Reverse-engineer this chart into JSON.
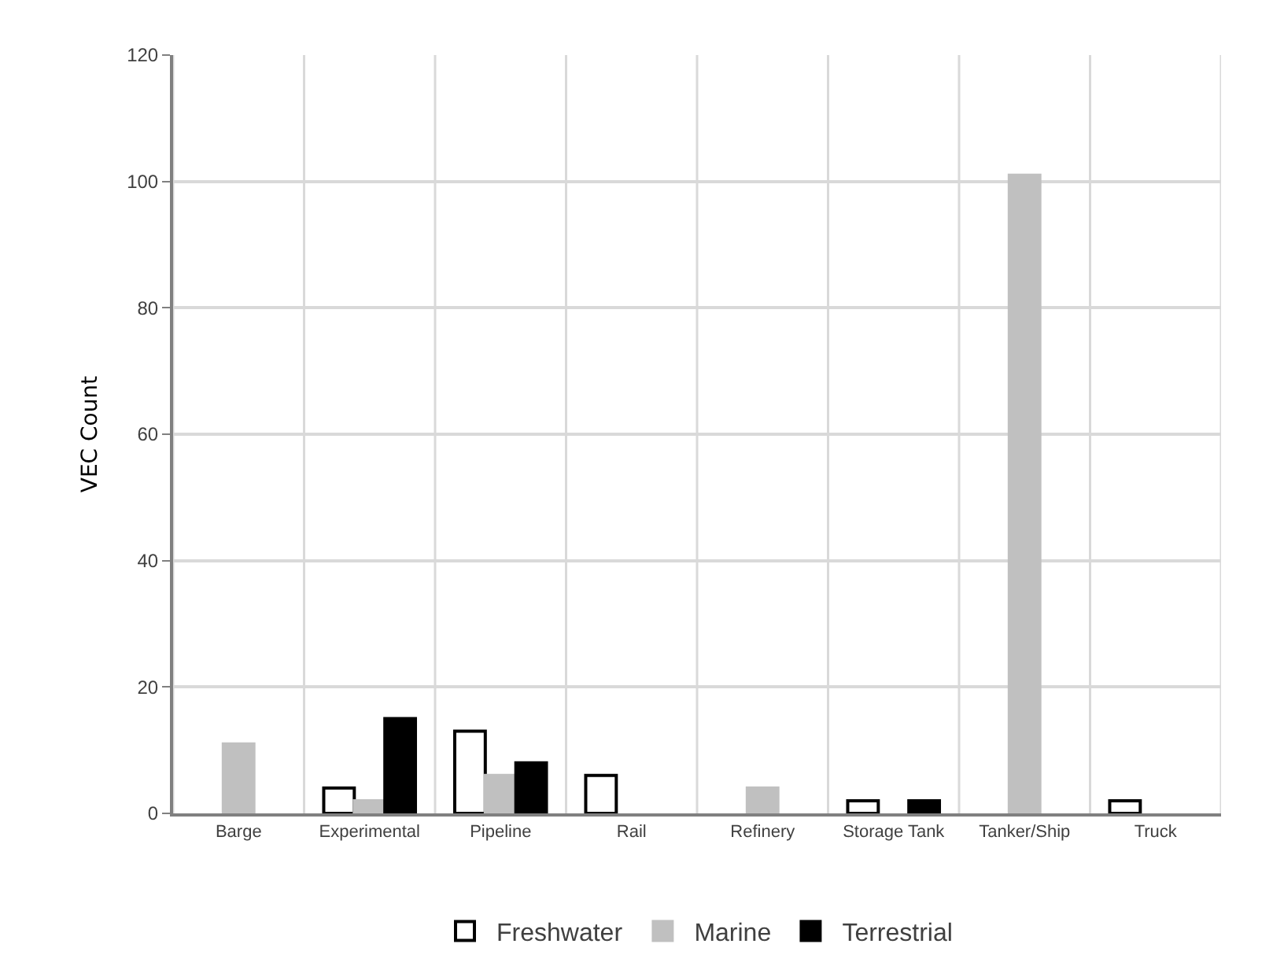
{
  "chart_data": {
    "type": "bar",
    "ylabel": "VEC Count",
    "categories": [
      "Barge",
      "Experimental",
      "Pipeline",
      "Rail",
      "Refinery",
      "Storage Tank",
      "Tanker/Ship",
      "Truck"
    ],
    "series": [
      {
        "name": "Freshwater",
        "color": "#ffffff",
        "values": [
          null,
          4,
          13,
          6,
          null,
          2,
          null,
          2
        ]
      },
      {
        "name": "Marine",
        "color": "#c0c0c0",
        "values": [
          11,
          2,
          6,
          null,
          4,
          null,
          101,
          null
        ]
      },
      {
        "name": "Terrestrial",
        "color": "#000000",
        "values": [
          null,
          15,
          8,
          null,
          null,
          2,
          null,
          null
        ]
      }
    ],
    "ylim": [
      0,
      120
    ],
    "yticks": [
      0,
      20,
      40,
      60,
      80,
      100,
      120
    ],
    "grid": true,
    "legend": "bottom"
  }
}
